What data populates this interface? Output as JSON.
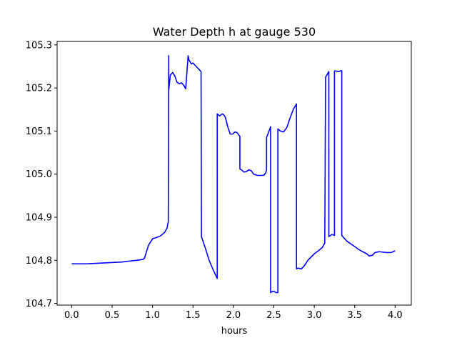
{
  "chart_data": {
    "type": "line",
    "title": "Water Depth h at gauge 530",
    "xlabel": "hours",
    "ylabel": "",
    "xlim": [
      -0.18,
      4.2
    ],
    "ylim": [
      104.696,
      105.308
    ],
    "xticks": [
      0.0,
      0.5,
      1.0,
      1.5,
      2.0,
      2.5,
      3.0,
      3.5,
      4.0
    ],
    "xtick_labels": [
      "0.0",
      "0.5",
      "1.0",
      "1.5",
      "2.0",
      "2.5",
      "3.0",
      "3.5",
      "4.0"
    ],
    "yticks": [
      104.7,
      104.8,
      104.9,
      105.0,
      105.1,
      105.2,
      105.3
    ],
    "ytick_labels": [
      "104.7",
      "104.8",
      "104.9",
      "105.0",
      "105.1",
      "105.2",
      "105.3"
    ],
    "grid": false,
    "series": [
      {
        "color": "#0000ff",
        "x": [
          0.0,
          0.2,
          0.4,
          0.62,
          0.7,
          0.8,
          0.88,
          0.9,
          0.95,
          1.0,
          1.05,
          1.1,
          1.15,
          1.18,
          1.195,
          1.2,
          1.2,
          1.22,
          1.25,
          1.28,
          1.3,
          1.33,
          1.36,
          1.39,
          1.41,
          1.44,
          1.445,
          1.45,
          1.48,
          1.5,
          1.53,
          1.6,
          1.605,
          1.65,
          1.7,
          1.75,
          1.8,
          1.8,
          1.83,
          1.86,
          1.88,
          1.9,
          1.93,
          1.96,
          1.99,
          2.02,
          2.04,
          2.06,
          2.07,
          2.08,
          2.08,
          2.1,
          2.13,
          2.16,
          2.19,
          2.22,
          2.25,
          2.3,
          2.35,
          2.38,
          2.4,
          2.41,
          2.41,
          2.44,
          2.46,
          2.46,
          2.48,
          2.5,
          2.53,
          2.55,
          2.55,
          2.58,
          2.62,
          2.66,
          2.7,
          2.74,
          2.78,
          2.78,
          2.8,
          2.84,
          2.88,
          2.92,
          3.0,
          3.05,
          3.1,
          3.13,
          3.14,
          3.14,
          3.18,
          3.18,
          3.22,
          3.25,
          3.25,
          3.3,
          3.33,
          3.34,
          3.34,
          3.4,
          3.5,
          3.55,
          3.6,
          3.65,
          3.68,
          3.72,
          3.75,
          3.8,
          3.9,
          3.95,
          4.0
        ],
        "y": [
          104.792,
          104.792,
          104.794,
          104.796,
          104.798,
          104.8,
          104.802,
          104.805,
          104.835,
          104.85,
          104.853,
          104.857,
          104.865,
          104.875,
          104.89,
          105.275,
          105.195,
          105.23,
          105.236,
          105.226,
          105.214,
          105.21,
          105.212,
          105.205,
          105.198,
          105.275,
          105.27,
          105.265,
          105.256,
          105.258,
          105.252,
          105.238,
          104.855,
          104.83,
          104.8,
          104.778,
          104.758,
          105.14,
          105.135,
          105.14,
          105.138,
          105.132,
          105.11,
          105.093,
          105.093,
          105.098,
          105.097,
          105.093,
          105.09,
          105.088,
          105.012,
          105.01,
          105.005,
          105.006,
          105.01,
          105.008,
          105.0,
          104.997,
          104.997,
          104.998,
          105.003,
          105.01,
          105.085,
          105.1,
          105.11,
          104.725,
          104.728,
          104.728,
          104.725,
          104.725,
          105.105,
          105.1,
          105.098,
          105.108,
          105.13,
          105.15,
          105.163,
          104.78,
          104.782,
          104.78,
          104.788,
          104.8,
          104.815,
          104.822,
          104.83,
          104.84,
          105.22,
          105.225,
          105.238,
          104.855,
          104.86,
          104.858,
          105.24,
          105.238,
          105.24,
          105.24,
          104.858,
          104.845,
          104.832,
          104.825,
          104.82,
          104.815,
          104.81,
          104.812,
          104.818,
          104.82,
          104.818,
          104.818,
          104.822
        ]
      }
    ]
  }
}
